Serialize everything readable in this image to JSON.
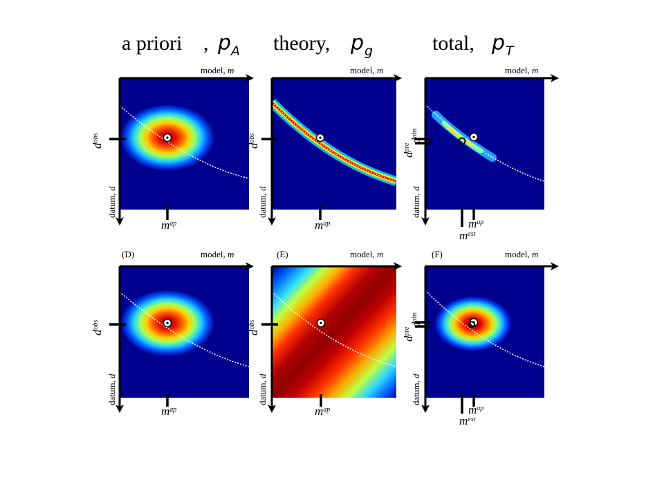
{
  "titles": {
    "apriori": {
      "text": "a priori",
      "comma": ",",
      "symbol": "p",
      "sub": "A"
    },
    "theory": {
      "text": "theory,",
      "symbol": "p",
      "sub": "g"
    },
    "total": {
      "text": "total,",
      "symbol": "p",
      "sub": "T"
    }
  },
  "axis": {
    "model_word": "model, ",
    "model_sym": "m",
    "datum_word": "datum, ",
    "datum_sym": "d"
  },
  "symbols": {
    "d": "d",
    "obs": "obs",
    "pre": "pre",
    "m": "m",
    "ap": "ap",
    "est": "est"
  },
  "panel_labels": {
    "D": "(D)",
    "E": "(E)",
    "F": "(F)"
  },
  "colors": {
    "background_field": "#00008f",
    "colormap": "jet",
    "axis": "#000000",
    "curve": "#ffffff"
  }
}
